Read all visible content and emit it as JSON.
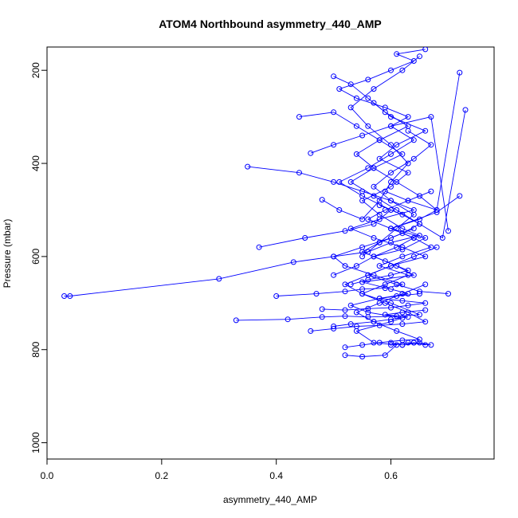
{
  "chart_data": {
    "type": "line",
    "title": "ATOM4 Northbound asymmetry_440_AMP",
    "xlabel": "asymmetry_440_AMP",
    "ylabel": "Pressure (mbar)",
    "xlim": [
      0.0,
      0.78
    ],
    "ylim": [
      1035,
      150
    ],
    "y_inverted": true,
    "x_ticks": [
      "0.0",
      "0.2",
      "0.4",
      "0.6"
    ],
    "y_ticks": [
      "200",
      "400",
      "600",
      "800",
      "1000"
    ],
    "grid": false,
    "legend": "none",
    "series": [
      {
        "color": "#0000ff",
        "marker": "open-circle",
        "x": [
          0.52,
          0.55,
          0.59,
          0.61,
          0.57,
          0.54,
          0.6,
          0.62,
          0.56,
          0.53,
          0.58,
          0.63,
          0.6,
          0.55,
          0.64,
          0.61,
          0.57,
          0.62,
          0.66,
          0.6,
          0.65,
          0.68,
          0.63,
          0.59
        ],
        "y": [
          812,
          815,
          812,
          790,
          785,
          760,
          740,
          732,
          720,
          705,
          690,
          680,
          670,
          655,
          640,
          620,
          600,
          585,
          560,
          540,
          520,
          500,
          480,
          460
        ]
      },
      {
        "color": "#0000ff",
        "marker": "open-circle",
        "x": [
          0.03,
          0.04,
          0.3,
          0.43,
          0.5,
          0.56,
          0.6,
          0.65,
          0.62,
          0.58,
          0.55,
          0.6,
          0.63,
          0.58,
          0.61,
          0.66,
          0.6,
          0.57
        ],
        "y": [
          685,
          685,
          648,
          612,
          600,
          590,
          570,
          555,
          540,
          510,
          480,
          450,
          420,
          390,
          360,
          330,
          300,
          270
        ]
      },
      {
        "color": "#0000ff",
        "marker": "open-circle",
        "x": [
          0.33,
          0.42,
          0.48,
          0.52,
          0.56,
          0.61,
          0.65,
          0.6,
          0.55,
          0.59,
          0.63,
          0.58,
          0.62,
          0.67,
          0.64,
          0.6,
          0.68,
          0.72
        ],
        "y": [
          737,
          735,
          730,
          728,
          730,
          728,
          725,
          700,
          680,
          660,
          640,
          620,
          600,
          580,
          560,
          540,
          505,
          470
        ]
      },
      {
        "color": "#0000ff",
        "marker": "open-circle",
        "x": [
          0.35,
          0.44,
          0.5,
          0.55,
          0.6,
          0.64,
          0.58,
          0.53,
          0.57,
          0.62,
          0.66,
          0.6,
          0.56,
          0.61,
          0.65,
          0.7
        ],
        "y": [
          407,
          420,
          440,
          460,
          480,
          500,
          520,
          540,
          560,
          580,
          600,
          620,
          640,
          660,
          675,
          680
        ]
      },
      {
        "color": "#0000ff",
        "marker": "open-circle",
        "x": [
          0.37,
          0.45,
          0.52,
          0.57,
          0.6,
          0.55,
          0.51,
          0.56,
          0.6,
          0.64,
          0.6,
          0.67,
          0.7
        ],
        "y": [
          580,
          560,
          545,
          530,
          500,
          470,
          440,
          410,
          380,
          350,
          320,
          300,
          545
        ]
      },
      {
        "color": "#0000ff",
        "marker": "open-circle",
        "x": [
          0.44,
          0.5,
          0.54,
          0.58,
          0.62,
          0.57,
          0.53,
          0.57,
          0.61,
          0.65,
          0.69,
          0.73
        ],
        "y": [
          300,
          290,
          320,
          350,
          380,
          410,
          440,
          470,
          500,
          530,
          560,
          285
        ]
      },
      {
        "color": "#0000ff",
        "marker": "open-circle",
        "x": [
          0.5,
          0.53,
          0.56,
          0.59,
          0.63,
          0.58,
          0.54,
          0.57,
          0.61,
          0.65,
          0.68,
          0.72
        ],
        "y": [
          213,
          230,
          260,
          290,
          320,
          350,
          380,
          410,
          440,
          470,
          500,
          205
        ]
      },
      {
        "color": "#0000ff",
        "marker": "open-circle",
        "x": [
          0.46,
          0.5,
          0.55,
          0.6,
          0.63,
          0.59,
          0.54,
          0.51,
          0.56,
          0.6,
          0.64,
          0.61,
          0.66
        ],
        "y": [
          378,
          360,
          340,
          320,
          300,
          280,
          260,
          240,
          220,
          200,
          180,
          165,
          155
        ]
      },
      {
        "color": "#0000ff",
        "marker": "open-circle",
        "x": [
          0.4,
          0.47,
          0.52,
          0.55,
          0.59,
          0.62,
          0.57,
          0.52,
          0.5,
          0.55,
          0.6,
          0.64
        ],
        "y": [
          685,
          680,
          675,
          670,
          668,
          660,
          640,
          620,
          600,
          580,
          560,
          540
        ]
      },
      {
        "color": "#0000ff",
        "marker": "open-circle",
        "x": [
          0.46,
          0.5,
          0.54,
          0.58,
          0.62,
          0.66,
          0.63,
          0.59,
          0.55,
          0.52,
          0.56,
          0.6,
          0.64,
          0.68
        ],
        "y": [
          760,
          755,
          750,
          748,
          745,
          740,
          720,
          700,
          680,
          660,
          640,
          620,
          600,
          580
        ]
      },
      {
        "color": "#0000ff",
        "marker": "open-circle",
        "x": [
          0.48,
          0.51,
          0.55,
          0.58,
          0.6,
          0.63,
          0.6,
          0.56,
          0.53,
          0.57,
          0.62,
          0.65
        ],
        "y": [
          478,
          500,
          520,
          480,
          440,
          400,
          360,
          320,
          280,
          240,
          200,
          170
        ]
      },
      {
        "color": "#0000ff",
        "marker": "open-circle",
        "x": [
          0.52,
          0.55,
          0.58,
          0.62,
          0.65,
          0.61,
          0.57,
          0.54,
          0.58,
          0.62,
          0.66
        ],
        "y": [
          795,
          790,
          785,
          780,
          778,
          760,
          740,
          720,
          700,
          680,
          660
        ]
      },
      {
        "color": "#0000ff",
        "marker": "open-circle",
        "x": [
          0.6,
          0.62,
          0.64,
          0.66,
          0.64,
          0.62,
          0.65,
          0.67,
          0.63,
          0.6
        ],
        "y": [
          785,
          790,
          785,
          790,
          785,
          790,
          785,
          790,
          785,
          790
        ]
      },
      {
        "color": "#0000ff",
        "marker": "open-circle",
        "x": [
          0.53,
          0.56,
          0.6,
          0.63,
          0.59,
          0.55,
          0.58,
          0.62,
          0.65,
          0.62,
          0.58
        ],
        "y": [
          660,
          650,
          640,
          630,
          610,
          590,
          570,
          550,
          530,
          510,
          490
        ]
      },
      {
        "color": "#0000ff",
        "marker": "open-circle",
        "x": [
          0.5,
          0.54,
          0.57,
          0.61,
          0.64,
          0.6,
          0.56,
          0.59,
          0.63,
          0.67
        ],
        "y": [
          640,
          620,
          600,
          580,
          560,
          540,
          520,
          500,
          480,
          460
        ]
      },
      {
        "color": "#0000ff",
        "marker": "open-circle",
        "x": [
          0.55,
          0.58,
          0.61,
          0.64,
          0.6,
          0.57,
          0.6,
          0.64,
          0.67,
          0.63
        ],
        "y": [
          600,
          570,
          540,
          510,
          480,
          450,
          420,
          390,
          360,
          330
        ]
      },
      {
        "color": "#0000ff",
        "marker": "open-circle",
        "x": [
          0.48,
          0.52,
          0.56,
          0.6,
          0.63,
          0.66,
          0.62,
          0.58,
          0.61,
          0.65
        ],
        "y": [
          713,
          715,
          712,
          710,
          705,
          700,
          695,
          690,
          685,
          680
        ]
      },
      {
        "color": "#0000ff",
        "marker": "open-circle",
        "x": [
          0.5,
          0.53,
          0.57,
          0.6,
          0.63,
          0.59,
          0.62,
          0.66
        ],
        "y": [
          750,
          745,
          740,
          735,
          730,
          725,
          720,
          715
        ]
      }
    ]
  }
}
